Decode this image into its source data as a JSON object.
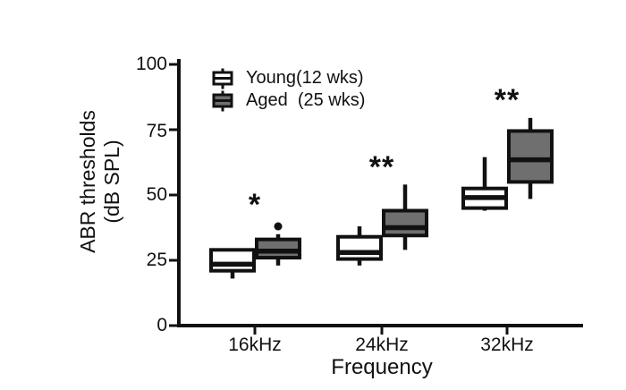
{
  "theme": {
    "background": "#ffffff",
    "ink": "#111111",
    "young_fill": "#ffffff",
    "aged_fill": "#6f6f6f"
  },
  "y_axis": {
    "title_lines": [
      "ABR thresholds",
      "(dB SPL)"
    ],
    "tick_labels": [
      "100",
      "75",
      "50",
      "25",
      "0"
    ]
  },
  "x_axis": {
    "title": "Frequency",
    "tick_labels": [
      "16kHz",
      "24kHz",
      "32kHz"
    ]
  },
  "legend": {
    "items": [
      {
        "label": "Young(12 wks)",
        "fill": "#ffffff"
      },
      {
        "label": "Aged  (25 wks)",
        "fill": "#6f6f6f"
      }
    ]
  },
  "chart_data": {
    "type": "boxplot",
    "title": "",
    "xlabel": "Frequency",
    "ylabel": "ABR thresholds (dB SPL)",
    "ylim": [
      0,
      100
    ],
    "yticks": [
      0,
      25,
      50,
      75,
      100
    ],
    "categories": [
      "16kHz",
      "24kHz",
      "32kHz"
    ],
    "legend_position": "top-left-inside",
    "grid": false,
    "series": [
      {
        "name": "Young(12 wks)",
        "fill": "#ffffff",
        "boxes": [
          {
            "low": 18,
            "q1": 21,
            "median": 23.5,
            "q3": 29,
            "high": null,
            "outliers": []
          },
          {
            "low": 23,
            "q1": 25.5,
            "median": 28,
            "q3": 34,
            "high": 38,
            "outliers": []
          },
          {
            "low": 44,
            "q1": 45,
            "median": 49,
            "q3": 52.5,
            "high": 64.5,
            "outliers": []
          }
        ]
      },
      {
        "name": "Aged (25 wks)",
        "fill": "#6f6f6f",
        "boxes": [
          {
            "low": 23,
            "q1": 26,
            "median": 28.5,
            "q3": 33,
            "high": 35,
            "outliers": [
              38
            ]
          },
          {
            "low": 29,
            "q1": 34.5,
            "median": 37.5,
            "q3": 44,
            "high": 54,
            "outliers": []
          },
          {
            "low": 48.5,
            "q1": 55,
            "median": 63.5,
            "q3": 74.5,
            "high": 79.5,
            "outliers": []
          }
        ]
      }
    ],
    "significance_by_category": [
      "*",
      "**",
      "**"
    ]
  }
}
